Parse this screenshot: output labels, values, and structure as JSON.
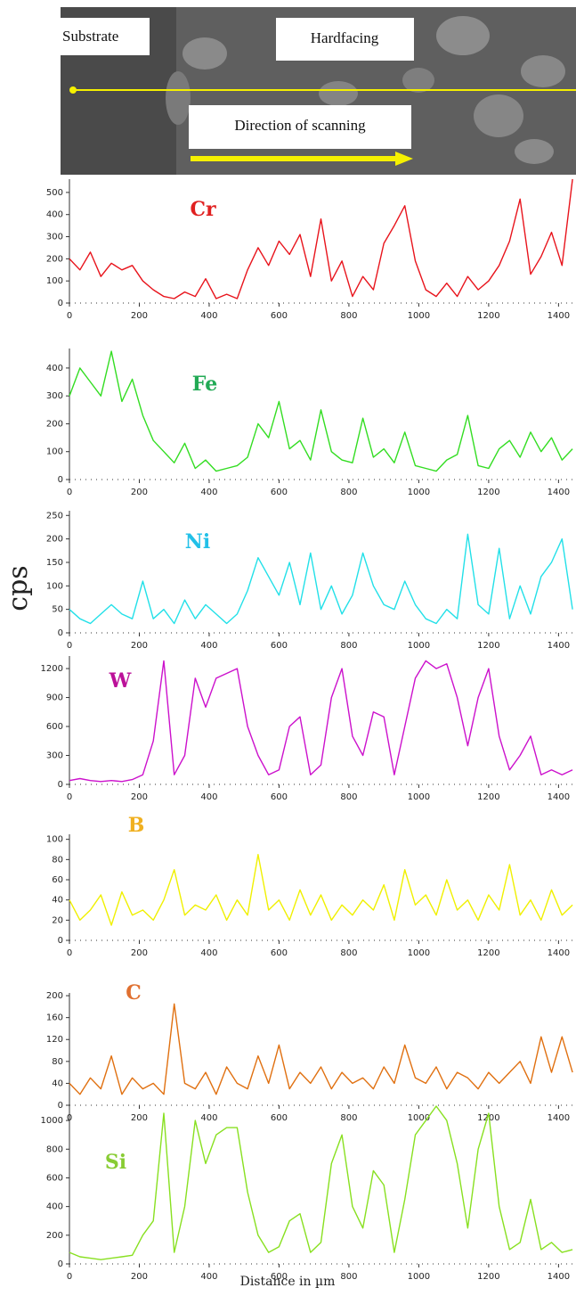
{
  "figure": {
    "image_labels": [
      "Substrate",
      "Hardfacing",
      "Direction of scanning"
    ],
    "y_label": "cps",
    "x_label": "Distance in µm"
  },
  "chart_data": [
    {
      "type": "line",
      "title": "Cr",
      "color": "#e8141c",
      "title_color": "#e02020",
      "x": [
        0,
        30,
        60,
        90,
        120,
        150,
        180,
        210,
        240,
        270,
        300,
        330,
        360,
        390,
        420,
        450,
        480,
        510,
        540,
        570,
        600,
        630,
        660,
        690,
        720,
        750,
        780,
        810,
        840,
        870,
        900,
        930,
        960,
        990,
        1020,
        1050,
        1080,
        1110,
        1140,
        1170,
        1200,
        1230,
        1260,
        1290,
        1320,
        1350,
        1380,
        1410,
        1440
      ],
      "values": [
        200,
        150,
        230,
        120,
        180,
        150,
        170,
        100,
        60,
        30,
        20,
        50,
        30,
        110,
        20,
        40,
        20,
        150,
        250,
        170,
        280,
        220,
        310,
        120,
        380,
        100,
        190,
        30,
        120,
        60,
        270,
        350,
        440,
        190,
        60,
        30,
        90,
        30,
        120,
        60,
        100,
        170,
        280,
        470,
        130,
        210,
        320,
        170,
        560
      ],
      "xlim": [
        0,
        1450
      ],
      "xticks": [
        0,
        200,
        400,
        600,
        800,
        1000,
        1200,
        1400
      ],
      "ylim": [
        0,
        560
      ],
      "yticks": [
        0,
        100,
        200,
        300,
        400,
        500
      ]
    },
    {
      "type": "line",
      "title": "Fe",
      "color": "#33dd22",
      "title_color": "#22aa55",
      "x": [
        0,
        30,
        60,
        90,
        120,
        150,
        180,
        210,
        240,
        270,
        300,
        330,
        360,
        390,
        420,
        450,
        480,
        510,
        540,
        570,
        600,
        630,
        660,
        690,
        720,
        750,
        780,
        810,
        840,
        870,
        900,
        930,
        960,
        990,
        1020,
        1050,
        1080,
        1110,
        1140,
        1170,
        1200,
        1230,
        1260,
        1290,
        1320,
        1350,
        1380,
        1410,
        1440
      ],
      "values": [
        300,
        400,
        350,
        300,
        460,
        280,
        360,
        230,
        140,
        100,
        60,
        130,
        40,
        70,
        30,
        40,
        50,
        80,
        200,
        150,
        280,
        110,
        140,
        70,
        250,
        100,
        70,
        60,
        220,
        80,
        110,
        60,
        170,
        50,
        40,
        30,
        70,
        90,
        230,
        50,
        40,
        110,
        140,
        80,
        170,
        100,
        150,
        70,
        110
      ],
      "xlim": [
        0,
        1450
      ],
      "xticks": [
        0,
        200,
        400,
        600,
        800,
        1000,
        1200,
        1400
      ],
      "ylim": [
        0,
        470
      ],
      "yticks": [
        0,
        100,
        200,
        300,
        400
      ]
    },
    {
      "type": "line",
      "title": "Ni",
      "color": "#22e0e8",
      "title_color": "#22c0e8",
      "x": [
        0,
        30,
        60,
        90,
        120,
        150,
        180,
        210,
        240,
        270,
        300,
        330,
        360,
        390,
        420,
        450,
        480,
        510,
        540,
        570,
        600,
        630,
        660,
        690,
        720,
        750,
        780,
        810,
        840,
        870,
        900,
        930,
        960,
        990,
        1020,
        1050,
        1080,
        1110,
        1140,
        1170,
        1200,
        1230,
        1260,
        1290,
        1320,
        1350,
        1380,
        1410,
        1440
      ],
      "values": [
        50,
        30,
        20,
        40,
        60,
        40,
        30,
        110,
        30,
        50,
        20,
        70,
        30,
        60,
        40,
        20,
        40,
        90,
        160,
        120,
        80,
        150,
        60,
        170,
        50,
        100,
        40,
        80,
        170,
        100,
        60,
        50,
        110,
        60,
        30,
        20,
        50,
        30,
        210,
        60,
        40,
        180,
        30,
        100,
        40,
        120,
        150,
        200,
        50
      ],
      "xlim": [
        0,
        1450
      ],
      "xticks": [
        0,
        200,
        400,
        600,
        800,
        1000,
        1200,
        1400
      ],
      "ylim": [
        0,
        260
      ],
      "yticks": [
        0,
        50,
        100,
        150,
        200,
        250
      ]
    },
    {
      "type": "line",
      "title": "W",
      "color": "#cc11cc",
      "title_color": "#bb1199",
      "x": [
        0,
        30,
        60,
        90,
        120,
        150,
        180,
        210,
        240,
        270,
        300,
        330,
        360,
        390,
        420,
        450,
        480,
        510,
        540,
        570,
        600,
        630,
        660,
        690,
        720,
        750,
        780,
        810,
        840,
        870,
        900,
        930,
        960,
        990,
        1020,
        1050,
        1080,
        1110,
        1140,
        1170,
        1200,
        1230,
        1260,
        1290,
        1320,
        1350,
        1380,
        1410,
        1440
      ],
      "values": [
        40,
        60,
        40,
        30,
        40,
        30,
        50,
        100,
        450,
        1280,
        100,
        300,
        1100,
        800,
        1100,
        1150,
        1200,
        600,
        300,
        100,
        150,
        600,
        700,
        100,
        200,
        900,
        1200,
        500,
        300,
        750,
        700,
        100,
        600,
        1100,
        1280,
        1200,
        1250,
        900,
        400,
        900,
        1200,
        500,
        150,
        300,
        500,
        100,
        150,
        100,
        150
      ],
      "xlim": [
        0,
        1450
      ],
      "xticks": [
        0,
        200,
        400,
        600,
        800,
        1000,
        1200,
        1400
      ],
      "ylim": [
        0,
        1330
      ],
      "yticks": [
        0,
        300,
        600,
        900,
        1200
      ]
    },
    {
      "type": "line",
      "title": "B",
      "color": "#f0f000",
      "title_color": "#f0b020",
      "x": [
        0,
        30,
        60,
        90,
        120,
        150,
        180,
        210,
        240,
        270,
        300,
        330,
        360,
        390,
        420,
        450,
        480,
        510,
        540,
        570,
        600,
        630,
        660,
        690,
        720,
        750,
        780,
        810,
        840,
        870,
        900,
        930,
        960,
        990,
        1020,
        1050,
        1080,
        1110,
        1140,
        1170,
        1200,
        1230,
        1260,
        1290,
        1320,
        1350,
        1380,
        1410,
        1440
      ],
      "values": [
        40,
        20,
        30,
        45,
        15,
        48,
        25,
        30,
        20,
        40,
        70,
        25,
        35,
        30,
        45,
        20,
        40,
        25,
        85,
        30,
        40,
        20,
        50,
        25,
        45,
        20,
        35,
        25,
        40,
        30,
        55,
        20,
        70,
        35,
        45,
        25,
        60,
        30,
        40,
        20,
        45,
        30,
        75,
        25,
        40,
        20,
        50,
        25,
        35
      ],
      "xlim": [
        0,
        1450
      ],
      "xticks": [
        0,
        200,
        400,
        600,
        800,
        1000,
        1200,
        1400
      ],
      "ylim": [
        0,
        105
      ],
      "yticks": [
        0,
        20,
        40,
        60,
        80,
        100
      ]
    },
    {
      "type": "line",
      "title": "C",
      "color": "#e07010",
      "title_color": "#e07030",
      "x": [
        0,
        30,
        60,
        90,
        120,
        150,
        180,
        210,
        240,
        270,
        300,
        330,
        360,
        390,
        420,
        450,
        480,
        510,
        540,
        570,
        600,
        630,
        660,
        690,
        720,
        750,
        780,
        810,
        840,
        870,
        900,
        930,
        960,
        990,
        1020,
        1050,
        1080,
        1110,
        1140,
        1170,
        1200,
        1230,
        1260,
        1290,
        1320,
        1350,
        1380,
        1410,
        1440
      ],
      "values": [
        40,
        20,
        50,
        30,
        90,
        20,
        50,
        30,
        40,
        20,
        185,
        40,
        30,
        60,
        20,
        70,
        40,
        30,
        90,
        40,
        110,
        30,
        60,
        40,
        70,
        30,
        60,
        40,
        50,
        30,
        70,
        40,
        110,
        50,
        40,
        70,
        30,
        60,
        50,
        30,
        60,
        40,
        60,
        80,
        40,
        125,
        60,
        125,
        60
      ],
      "xlim": [
        0,
        1450
      ],
      "xticks": [
        0,
        200,
        400,
        600,
        800,
        1000,
        1200,
        1400
      ],
      "ylim": [
        0,
        205
      ],
      "yticks": [
        0,
        40,
        80,
        120,
        160,
        200
      ]
    },
    {
      "type": "line",
      "title": "Si",
      "color": "#88e020",
      "title_color": "#88cc33",
      "x": [
        0,
        30,
        60,
        90,
        120,
        150,
        180,
        210,
        240,
        270,
        300,
        330,
        360,
        390,
        420,
        450,
        480,
        510,
        540,
        570,
        600,
        630,
        660,
        690,
        720,
        750,
        780,
        810,
        840,
        870,
        900,
        930,
        960,
        990,
        1020,
        1050,
        1080,
        1110,
        1140,
        1170,
        1200,
        1230,
        1260,
        1290,
        1320,
        1350,
        1380,
        1410,
        1440
      ],
      "values": [
        80,
        50,
        40,
        30,
        40,
        50,
        60,
        200,
        300,
        1050,
        80,
        400,
        1000,
        700,
        900,
        950,
        950,
        500,
        200,
        80,
        120,
        300,
        350,
        80,
        150,
        700,
        900,
        400,
        250,
        650,
        550,
        80,
        450,
        900,
        1000,
        1100,
        1000,
        700,
        250,
        800,
        1050,
        400,
        100,
        150,
        450,
        100,
        150,
        80,
        100
      ],
      "xlim": [
        0,
        1450
      ],
      "xticks": [
        0,
        200,
        400,
        600,
        800,
        1000,
        1200,
        1400
      ],
      "ylim": [
        0,
        1100
      ],
      "yticks": [
        0,
        200,
        400,
        600,
        800,
        1000
      ]
    }
  ]
}
